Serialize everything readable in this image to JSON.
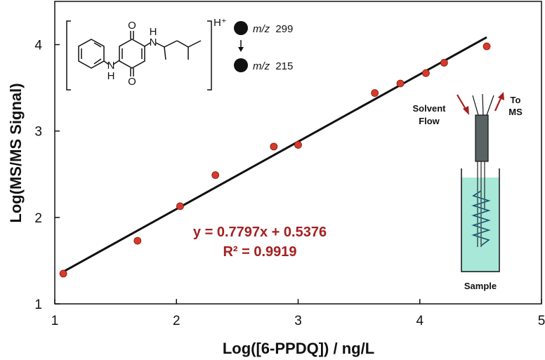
{
  "chart_data": {
    "type": "scatter",
    "xlabel": "Log([6-PPDQ]) / ng/L",
    "ylabel": "Log(MS/MS Signal)",
    "xlim": [
      1,
      5
    ],
    "ylim": [
      1,
      4.5
    ],
    "x_ticks": [
      "1",
      "2",
      "3",
      "4",
      "5"
    ],
    "y_ticks": [
      "1",
      "2",
      "3",
      "4"
    ],
    "points": [
      {
        "x": 1.07,
        "y": 1.35
      },
      {
        "x": 1.68,
        "y": 1.73
      },
      {
        "x": 2.03,
        "y": 2.13
      },
      {
        "x": 2.32,
        "y": 2.49
      },
      {
        "x": 2.8,
        "y": 2.82
      },
      {
        "x": 3.0,
        "y": 2.84
      },
      {
        "x": 3.63,
        "y": 3.44
      },
      {
        "x": 3.84,
        "y": 3.55
      },
      {
        "x": 4.05,
        "y": 3.67
      },
      {
        "x": 4.2,
        "y": 3.79
      },
      {
        "x": 4.55,
        "y": 3.98
      }
    ],
    "fit": {
      "slope": 0.7797,
      "intercept": 0.5376,
      "x_range": [
        1.07,
        4.55
      ]
    },
    "equation_text": "y = 0.7797x + 0.5376",
    "r2_text": "R² = 0.9919",
    "marker_color": "#d83a2a",
    "fit_color": "#111111",
    "annotation_color": "#a32020"
  },
  "inset": {
    "ion_charge": "H⁺",
    "mz_parent_prefix": "m/z",
    "mz_parent_value": "299",
    "mz_product_prefix": "m/z",
    "mz_product_value": "215",
    "atom_o_top": "O",
    "atom_o_bottom": "O",
    "atom_nh_right": "H",
    "atom_n_right": "N",
    "atom_n_left": "N",
    "atom_nh_left": "H",
    "solvent_label_line1": "Solvent",
    "solvent_label_line2": "Flow",
    "to_ms_label_line1": "To",
    "to_ms_label_line2": "MS",
    "sample_label": "Sample",
    "liquid_color": "#a8e8d8",
    "arrow_color": "#a32020"
  }
}
